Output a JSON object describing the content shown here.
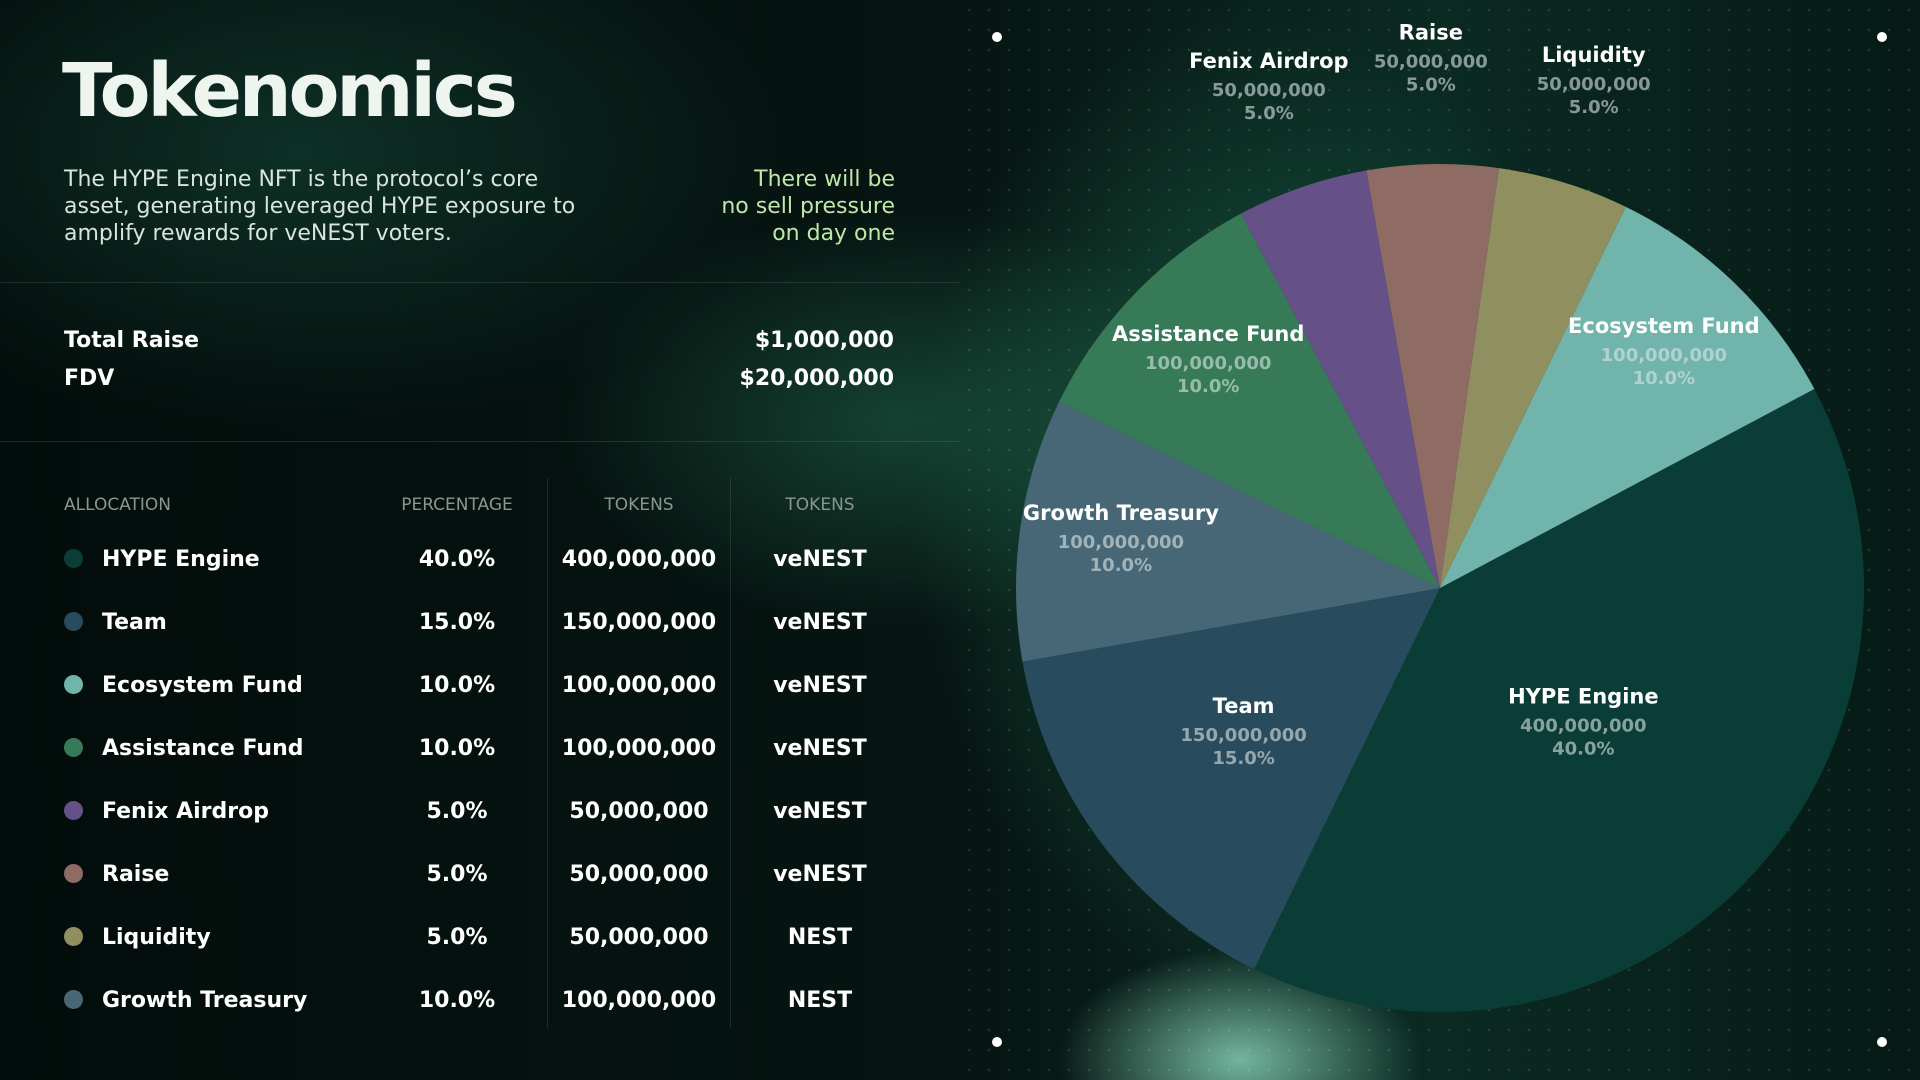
{
  "header": {
    "title": "Tokenomics",
    "description": [
      "The HYPE Engine NFT is the protocol’s core",
      "asset, generating leveraged HYPE exposure to",
      "amplify rewards for veNEST voters."
    ],
    "note": [
      "There will be",
      "no sell pressure",
      "on day one"
    ]
  },
  "stats": [
    {
      "label": "Total Raise",
      "value": "$1,000,000"
    },
    {
      "label": "FDV",
      "value": "$20,000,000"
    }
  ],
  "table": {
    "columns": [
      "ALLOCATION",
      "PERCENTAGE",
      "TOKENS",
      "TOKENS"
    ],
    "rows": [
      [
        "HYPE Engine",
        "40.0%",
        "400,000,000",
        "veNEST"
      ],
      [
        "Team",
        "15.0%",
        "150,000,000",
        "veNEST"
      ],
      [
        "Ecosystem Fund",
        "10.0%",
        "100,000,000",
        "veNEST"
      ],
      [
        "Assistance Fund",
        "10.0%",
        "100,000,000",
        "veNEST"
      ],
      [
        "Fenix Airdrop",
        "5.0%",
        "50,000,000",
        "veNEST"
      ],
      [
        "Raise",
        "5.0%",
        "50,000,000",
        "veNEST"
      ],
      [
        "Liquidity",
        "5.0%",
        "50,000,000",
        "NEST"
      ],
      [
        "Growth Treasury",
        "10.0%",
        "100,000,000",
        "NEST"
      ]
    ]
  },
  "chart_data": {
    "type": "pie",
    "categories": [
      "HYPE Engine",
      "Team",
      "Growth Treasury",
      "Assistance Fund",
      "Fenix Airdrop",
      "Raise",
      "Liquidity",
      "Ecosystem Fund"
    ],
    "values": [
      40,
      15,
      10,
      10,
      5,
      5,
      5,
      10
    ],
    "value_labels": [
      "40.0%",
      "15.0%",
      "10.0%",
      "10.0%",
      "5.0%",
      "5.0%",
      "5.0%",
      "10.0%"
    ],
    "amounts": [
      400000000,
      150000000,
      100000000,
      100000000,
      50000000,
      50000000,
      50000000,
      100000000
    ],
    "amount_labels": [
      "400,000,000",
      "150,000,000",
      "100,000,000",
      "100,000,000",
      "50,000,000",
      "50,000,000",
      "50,000,000",
      "100,000,000"
    ],
    "colors": [
      "#0b3d37",
      "#284b5d",
      "#476777",
      "#367a58",
      "#655087",
      "#8e6c64",
      "#908f5f",
      "#70b4ac"
    ]
  }
}
